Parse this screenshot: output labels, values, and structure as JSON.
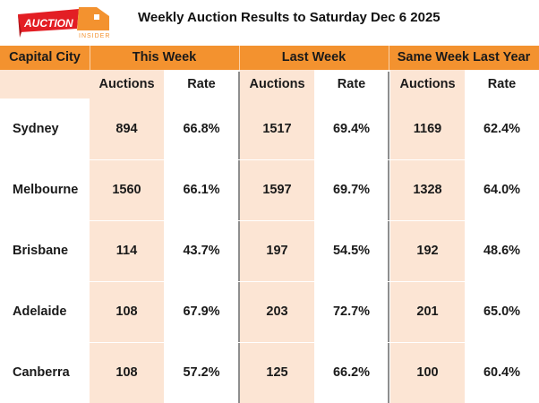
{
  "logo": {
    "text_top": "AUCTION",
    "text_bottom": "INSIDER",
    "brand_red": "#e31e24",
    "brand_orange": "#f3922f"
  },
  "title": "Weekly Auction Results to Saturday Dec 6 2025",
  "colors": {
    "header": "#f3922f",
    "peach": "#fce5d4"
  },
  "table": {
    "group_headers": [
      "Capital City",
      "This Week",
      "Last Week",
      "Same Week Last Year"
    ],
    "sub_headers": [
      "Auctions",
      "Rate",
      "Auctions",
      "Rate",
      "Auctions",
      "Rate"
    ],
    "rows": [
      {
        "city": "Sydney",
        "values": [
          "894",
          "66.8%",
          "1517",
          "69.4%",
          "1169",
          "62.4%"
        ]
      },
      {
        "city": "Melbourne",
        "values": [
          "1560",
          "66.1%",
          "1597",
          "69.7%",
          "1328",
          "64.0%"
        ]
      },
      {
        "city": "Brisbane",
        "values": [
          "114",
          "43.7%",
          "197",
          "54.5%",
          "192",
          "48.6%"
        ]
      },
      {
        "city": "Adelaide",
        "values": [
          "108",
          "67.9%",
          "203",
          "72.7%",
          "201",
          "65.0%"
        ]
      },
      {
        "city": "Canberra",
        "values": [
          "108",
          "57.2%",
          "125",
          "66.2%",
          "100",
          "60.4%"
        ]
      }
    ]
  }
}
